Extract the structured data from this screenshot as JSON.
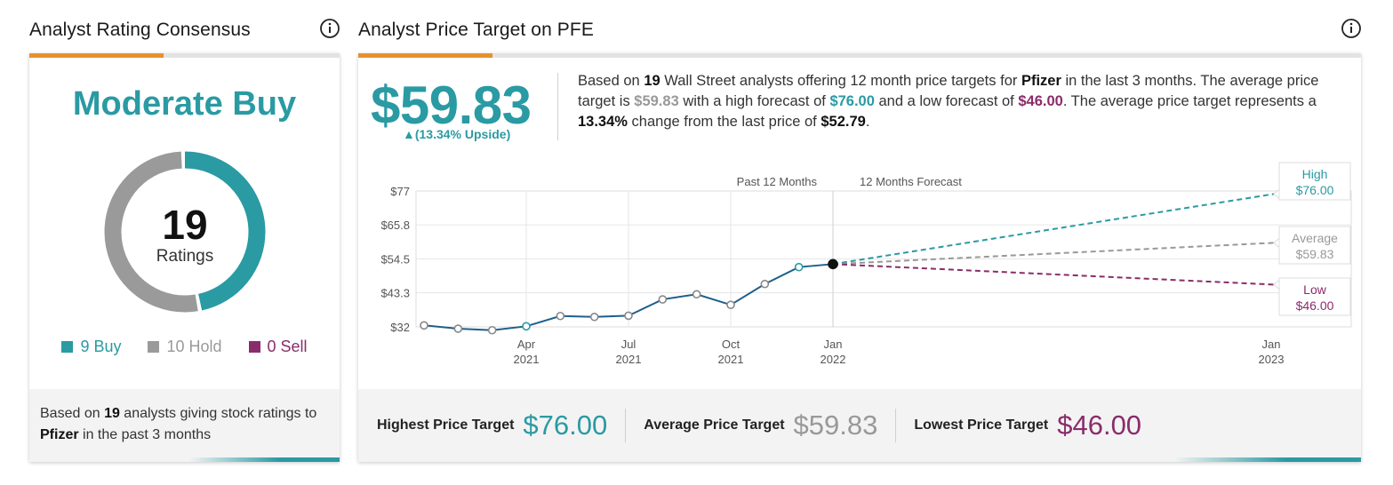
{
  "left_panel": {
    "title": "Analyst Rating Consensus",
    "rating": "Moderate Buy",
    "total": "19",
    "total_label": "Ratings",
    "legend": [
      {
        "label": "9 Buy",
        "count": 9,
        "color": "#2a9aa3"
      },
      {
        "label": "10 Hold",
        "count": 10,
        "color": "#9a9a9a"
      },
      {
        "label": "0 Sell",
        "count": 0,
        "color": "#8a2c6a"
      }
    ],
    "footnote": {
      "prefix": "Based on ",
      "count": "19",
      "middle": " analysts giving stock ratings to ",
      "company": "Pfizer",
      "suffix": "  in the past 3 months"
    }
  },
  "right_panel": {
    "title": "Analyst Price Target on PFE",
    "price": "$59.83",
    "upside": "▲(13.34% Upside)",
    "desc": {
      "t1": "Based on ",
      "analysts": "19",
      "t2": " Wall Street analysts offering 12 month price targets for ",
      "company": "Pfizer",
      "t3": " in the last 3 months. The average price target is ",
      "avg": "$59.83",
      "t4": " with a high forecast of ",
      "high": "$76.00",
      "t5": " and a low forecast of ",
      "low": "$46.00",
      "t6": ". The average price target represents a ",
      "pct": "13.34%",
      "t7": " change from the last price of ",
      "last": "$52.79",
      "t8": "."
    },
    "footer": {
      "highest_label": "Highest Price Target",
      "highest_value": "$76.00",
      "average_label": "Average Price Target",
      "average_value": "$59.83",
      "lowest_label": "Lowest Price Target",
      "lowest_value": "$46.00"
    }
  },
  "colors": {
    "teal": "#2a9aa3",
    "gray": "#9a9a9a",
    "purple": "#8a2c6a",
    "history_line": "#1e5f8c",
    "accent_orange": "#e8902d"
  },
  "chart_data": {
    "type": "line",
    "header_past": "Past 12 Months",
    "header_forecast": "12 Months Forecast",
    "y_ticks": [
      "$77",
      "$65.8",
      "$54.5",
      "$43.3",
      "$32"
    ],
    "y_tick_values": [
      77,
      65.8,
      54.5,
      43.3,
      32
    ],
    "ylim": [
      32,
      77
    ],
    "x_ticks": [
      {
        "month": "Apr",
        "year": "2021",
        "index": 3
      },
      {
        "month": "Jul",
        "year": "2021",
        "index": 6
      },
      {
        "month": "Oct",
        "year": "2021",
        "index": 9
      },
      {
        "month": "Jan",
        "year": "2022",
        "index": 12
      },
      {
        "month": "Jan",
        "year": "2023",
        "index": 25
      }
    ],
    "history": [
      {
        "index": 0,
        "value": 32.5
      },
      {
        "index": 1,
        "value": 31.4
      },
      {
        "index": 2,
        "value": 30.9
      },
      {
        "index": 3,
        "value": 32.2
      },
      {
        "index": 4,
        "value": 35.6
      },
      {
        "index": 5,
        "value": 35.3
      },
      {
        "index": 6,
        "value": 35.7
      },
      {
        "index": 7,
        "value": 41.1
      },
      {
        "index": 8,
        "value": 42.8
      },
      {
        "index": 9,
        "value": 39.3
      },
      {
        "index": 10,
        "value": 46.2
      },
      {
        "index": 11,
        "value": 51.8
      },
      {
        "index": 12,
        "value": 52.79
      }
    ],
    "forecasts": [
      {
        "name": "High",
        "label": "High",
        "value_label": "$76.00",
        "value": 76.0,
        "color": "#2a9aa3"
      },
      {
        "name": "Average",
        "label": "Average",
        "value_label": "$59.83",
        "value": 59.83,
        "color": "#999999"
      },
      {
        "name": "Low",
        "label": "Low",
        "value_label": "$46.00",
        "value": 46.0,
        "color": "#8a2c6a"
      }
    ]
  }
}
